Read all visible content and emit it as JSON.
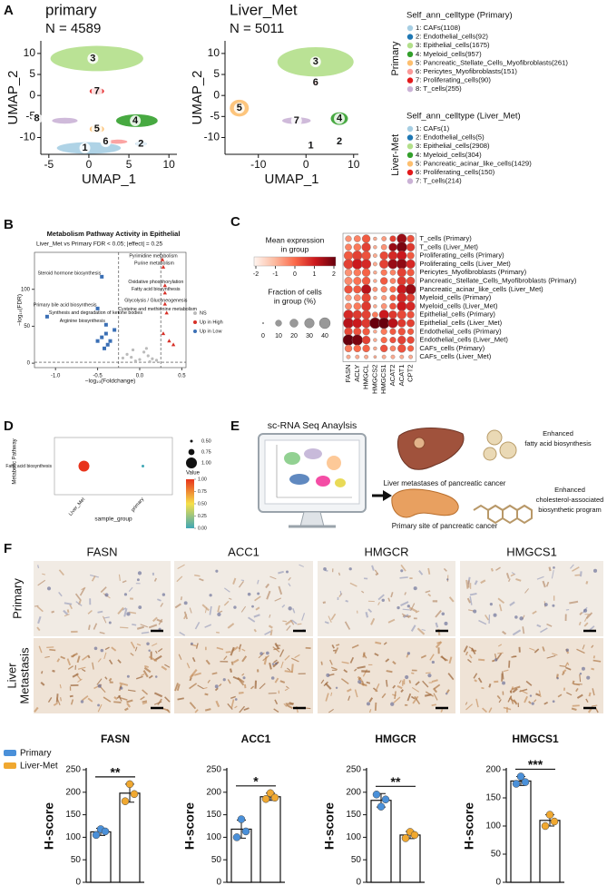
{
  "panel_labels": [
    "A",
    "B",
    "C",
    "D",
    "E",
    "F"
  ],
  "umap": [
    {
      "title": "primary",
      "n": "N = 4589",
      "xlabel": "UMAP_1",
      "ylabel": "UMAP_2",
      "xlim": [
        -6,
        11
      ],
      "ylim": [
        -14,
        13
      ],
      "xticks": [
        -5,
        0,
        5,
        10
      ],
      "yticks": [
        -10,
        -5,
        0,
        5,
        10
      ],
      "legend_title": "Self_ann_celltype (Primary)",
      "group": "Primary",
      "clusters": [
        {
          "id": "1",
          "name": "1: CAFs(1108)",
          "color": "#a6cee3"
        },
        {
          "id": "2",
          "name": "2: Endothelial_cells(92)",
          "color": "#1f78b4"
        },
        {
          "id": "3",
          "name": "3: Epithelial_cells(1675)",
          "color": "#b2df8a"
        },
        {
          "id": "4",
          "name": "4: Myeloid_cells(957)",
          "color": "#33a02c"
        },
        {
          "id": "5",
          "name": "5: Pancreatic_Stellate_Cells_Myofibroblasts(261)",
          "color": "#fdbf6f"
        },
        {
          "id": "6",
          "name": "6: Pericytes_Myofibroblasts(151)",
          "color": "#fb9a99"
        },
        {
          "id": "7",
          "name": "7: Proliferating_cells(90)",
          "color": "#e31a1c"
        },
        {
          "id": "8",
          "name": "8: T_cells(255)",
          "color": "#cab2d6"
        }
      ]
    },
    {
      "title": "Liver_Met",
      "n": "N = 5011",
      "xlabel": "UMAP_1",
      "ylabel": "UMAP_2",
      "xlim": [
        -17,
        11
      ],
      "ylim": [
        -14,
        13
      ],
      "xticks": [
        -10,
        0,
        10
      ],
      "yticks": [
        -10,
        -5,
        0,
        5,
        10
      ],
      "legend_title": "Self_ann_celltype (Liver_Met)",
      "group": "Liver-Met",
      "clusters": [
        {
          "id": "1",
          "name": "1: CAFs(1)",
          "color": "#a6cee3"
        },
        {
          "id": "2",
          "name": "2: Endothelial_cells(5)",
          "color": "#1f78b4"
        },
        {
          "id": "3",
          "name": "3: Epithelial_cells(2908)",
          "color": "#b2df8a"
        },
        {
          "id": "4",
          "name": "4: Myeloid_cells(304)",
          "color": "#33a02c"
        },
        {
          "id": "5",
          "name": "5: Pancreatic_acinar_like_cells(1429)",
          "color": "#fdbf6f"
        },
        {
          "id": "6",
          "name": "6: Proliferating_cells(150)",
          "color": "#e31a1c"
        },
        {
          "id": "7",
          "name": "7: T_cells(214)",
          "color": "#cab2d6"
        }
      ]
    }
  ],
  "volcano": {
    "title": "Metabolism Pathway Activity in Epithelial",
    "subtitle": "Liver_Met vs Primary FDR < 0.05; |effect| = 0.25",
    "xlabel": "−log₁₀(Foldchange)",
    "ylabel": "−log₁₀(FDR)",
    "xlim": [
      -1.25,
      0.55
    ],
    "ylim": [
      -6,
      150
    ],
    "xticks": [
      {
        "value": -1,
        "label": "-1.0"
      },
      {
        "value": -0.5,
        "label": "-0.5"
      },
      {
        "value": 0,
        "label": "0.0"
      },
      {
        "value": 0.5,
        "label": "0.5"
      }
    ],
    "yticks": [
      0,
      50,
      100
    ],
    "vlines": [
      -0.25,
      0.25
    ],
    "hline": 1.3,
    "groups": [
      {
        "name": "NS",
        "color": "#bbbbbb"
      },
      {
        "name": "Up in High",
        "color": "#d73027"
      },
      {
        "name": "Up in Low",
        "color": "#3a6fb5"
      }
    ],
    "points": [
      {
        "x": 0.27,
        "y": 140,
        "group": "Up in High",
        "label": "Pyrimidine metabolism"
      },
      {
        "x": -0.45,
        "y": 117,
        "group": "Up in Low",
        "label": "Steroid hormone biosynthesis"
      },
      {
        "x": 0.28,
        "y": 130,
        "group": "Up in High",
        "label": "Purine metabolism"
      },
      {
        "x": 0.3,
        "y": 105,
        "group": "Up in High",
        "label": "Oxidative phosphorylation"
      },
      {
        "x": 0.3,
        "y": 95,
        "group": "Up in High",
        "label": "Fatty acid biosynthesis"
      },
      {
        "x": -0.5,
        "y": 74,
        "group": "Up in Low",
        "label": "Primary bile acid biosynthesis"
      },
      {
        "x": 0.3,
        "y": 80,
        "group": "Up in High",
        "label": "Glycolysis / Gluconeogenesis"
      },
      {
        "x": -1.1,
        "y": 63,
        "group": "Up in Low",
        "label": "Synthesis and degradation of ketone bodies"
      },
      {
        "x": 0.32,
        "y": 68,
        "group": "Up in High",
        "label": "Cysteine and methionine metabolism"
      },
      {
        "x": -0.4,
        "y": 52,
        "group": "Up in Low",
        "label": "Arginine biosynthesis"
      },
      {
        "x": -0.4,
        "y": 40,
        "group": "Up in Low"
      },
      {
        "x": -0.45,
        "y": 35,
        "group": "Up in Low"
      },
      {
        "x": -0.35,
        "y": 30,
        "group": "Up in Low"
      },
      {
        "x": -0.38,
        "y": 25,
        "group": "Up in Low"
      },
      {
        "x": -0.3,
        "y": 45,
        "group": "Up in Low"
      },
      {
        "x": -0.42,
        "y": 20,
        "group": "Up in Low"
      },
      {
        "x": -0.5,
        "y": 30,
        "group": "Up in Low"
      },
      {
        "x": 0.35,
        "y": 30,
        "group": "Up in High"
      },
      {
        "x": 0.4,
        "y": 25,
        "group": "Up in High"
      },
      {
        "x": 0.28,
        "y": 40,
        "group": "Up in High"
      },
      {
        "x": 0,
        "y": 5,
        "group": "NS"
      },
      {
        "x": -0.1,
        "y": 8,
        "group": "NS"
      },
      {
        "x": 0.1,
        "y": 10,
        "group": "NS"
      },
      {
        "x": 0.05,
        "y": 15,
        "group": "NS"
      },
      {
        "x": -0.05,
        "y": 3,
        "group": "NS"
      },
      {
        "x": 0.15,
        "y": 6,
        "group": "NS"
      },
      {
        "x": -0.15,
        "y": 12,
        "group": "NS"
      },
      {
        "x": 0.2,
        "y": 4,
        "group": "NS"
      },
      {
        "x": -0.2,
        "y": 7,
        "group": "NS"
      },
      {
        "x": 0.08,
        "y": 20,
        "group": "NS"
      },
      {
        "x": -0.08,
        "y": 18,
        "group": "NS"
      },
      {
        "x": 0.12,
        "y": 2,
        "group": "NS"
      }
    ]
  },
  "dotplot": {
    "genes": [
      "FASN",
      "ACLY",
      "HMGCL",
      "HMGCS2",
      "HMGCS1",
      "ACAT2",
      "ACAT1",
      "CPT2"
    ],
    "groups": [
      "T_cells (Primary)",
      "T_cells (Liver_Met)",
      "Proliferating_cells (Primary)",
      "Proliferating_cells (Liver_Met)",
      "Pericytes_Myofibroblasts (Primary)",
      "Pancreatic_Stellate_Cells_Myofibroblasts (Primary)",
      "Pancreatic_acinar_like_cells (Liver_Met)",
      "Myeloid_cells (Primary)",
      "Myeloid_cells (Liver_Met)",
      "Epithelial_cells (Primary)",
      "Epithelial_cells (Liver_Met)",
      "Endothelial_cells (Primary)",
      "Endothelial_cells (Liver_Met)",
      "CAFs_cells (Primary)",
      "CAFs_cells (Liver_Met)"
    ],
    "mean": [
      [
        -0.5,
        -0.3,
        0.2,
        -0.8,
        -0.6,
        0.5,
        1.5,
        0.3
      ],
      [
        -0.3,
        -0.2,
        0.5,
        -0.8,
        -0.5,
        1.5,
        1.8,
        0.6
      ],
      [
        0.2,
        0.5,
        0.3,
        -0.8,
        0.4,
        0.8,
        1,
        0.2
      ],
      [
        0.5,
        1,
        0.8,
        -0.8,
        0.5,
        1.5,
        1.6,
        0.8
      ],
      [
        -0.5,
        -0.2,
        0.1,
        -0.8,
        -0.2,
        -0.3,
        0.5,
        0.2
      ],
      [
        -0.4,
        -0.1,
        0.2,
        -0.8,
        0.2,
        -0.3,
        0.6,
        0.4
      ],
      [
        0.3,
        0.2,
        1.2,
        -0.5,
        -0.3,
        0,
        1,
        1.5
      ],
      [
        -0.6,
        -0.4,
        0.4,
        -0.8,
        -0.6,
        0.2,
        0.8,
        0.5
      ],
      [
        -0.4,
        -0.2,
        0.6,
        -0.8,
        -0.5,
        0.3,
        1,
        0.8
      ],
      [
        0.8,
        0.6,
        0.5,
        -0.2,
        1,
        0.6,
        0.4,
        0.3
      ],
      [
        1.2,
        1,
        0.6,
        2,
        2,
        1.2,
        0.6,
        0.5
      ],
      [
        0.4,
        0.3,
        0.2,
        -0.8,
        -0.2,
        0.2,
        0.3,
        0.2
      ],
      [
        2,
        1.8,
        0.5,
        -0.8,
        0,
        0.3,
        0.5,
        0.4
      ],
      [
        -0.2,
        0,
        0.1,
        -0.8,
        0.3,
        -0.3,
        0.3,
        0.1
      ],
      [
        -0.8,
        -0.8,
        -0.8,
        -0.8,
        -0.8,
        -0.8,
        -0.8,
        -0.8
      ]
    ],
    "fraction": [
      [
        10,
        12,
        20,
        2,
        5,
        10,
        30,
        15
      ],
      [
        12,
        15,
        25,
        2,
        8,
        20,
        35,
        20
      ],
      [
        25,
        30,
        25,
        3,
        20,
        25,
        30,
        15
      ],
      [
        30,
        35,
        30,
        3,
        25,
        30,
        35,
        25
      ],
      [
        15,
        15,
        20,
        2,
        10,
        8,
        25,
        15
      ],
      [
        18,
        18,
        20,
        2,
        15,
        8,
        25,
        20
      ],
      [
        20,
        18,
        30,
        5,
        10,
        10,
        30,
        35
      ],
      [
        10,
        12,
        25,
        2,
        6,
        10,
        30,
        20
      ],
      [
        12,
        15,
        28,
        2,
        8,
        12,
        30,
        25
      ],
      [
        30,
        25,
        25,
        8,
        30,
        20,
        25,
        15
      ],
      [
        35,
        30,
        28,
        40,
        40,
        30,
        20,
        18
      ],
      [
        20,
        18,
        15,
        2,
        10,
        10,
        15,
        10
      ],
      [
        40,
        38,
        20,
        2,
        10,
        10,
        20,
        15
      ],
      [
        15,
        15,
        15,
        2,
        15,
        8,
        20,
        10
      ],
      [
        3,
        3,
        3,
        1,
        3,
        3,
        3,
        3
      ]
    ],
    "color_title": [
      "Mean expression",
      "in group"
    ],
    "clim": [
      -2,
      2
    ],
    "cticks": [
      -2,
      -1,
      0,
      1,
      2
    ],
    "colormap": [
      "#fff5f0",
      "#fcbba1",
      "#fb6a4a",
      "#cb181d",
      "#67000d"
    ],
    "size_title": [
      "Fraction of cells",
      "in group (%)"
    ],
    "sticks": [
      0,
      10,
      20,
      30,
      40
    ]
  },
  "bubble": {
    "ylabel": "Metabolic Pathway",
    "xlabel": "sample_group",
    "categories": [
      "Liver_Met",
      "primary"
    ],
    "pathways": [
      "Fatty acid biosynthesis"
    ],
    "values": [
      1,
      0
    ],
    "sizes": [
      1,
      0.5
    ],
    "color_title": "Value",
    "clim": [
      0,
      1
    ],
    "cticks": [
      {
        "value": 0,
        "label": "0.00"
      },
      {
        "value": 0.25,
        "label": "0.25"
      },
      {
        "value": 0.5,
        "label": "0.50"
      },
      {
        "value": 0.75,
        "label": "0.75"
      },
      {
        "value": 1,
        "label": "1.00"
      }
    ],
    "sticks": [
      {
        "value": 0.5,
        "label": "0.50"
      },
      {
        "value": 0.75,
        "label": "0.75"
      },
      {
        "value": 1,
        "label": "1.00"
      }
    ],
    "colormap": [
      "#3fa7b5",
      "#f5e04a",
      "#e8341c"
    ]
  },
  "schematic": {
    "title": "sc-RNA Seq Anaylsis",
    "liver_caption": "Liver metastases of pancreatic cancer",
    "pancreas_caption": "Primary site of pancreatic cancer",
    "liver_effect": [
      "Enhanced",
      "fatty acid biosynthesis"
    ],
    "pancreas_effect": [
      "Enhanced",
      "cholesterol-associated",
      "biosynthetic program"
    ]
  },
  "ihc": {
    "columns": [
      "FASN",
      "ACC1",
      "HMGCR",
      "HMGCS1"
    ],
    "rows": [
      [
        "Primary"
      ],
      [
        "Liver",
        "Metastasis"
      ]
    ]
  },
  "bar_legend": [
    {
      "name": "Primary",
      "color": "#4a90d9"
    },
    {
      "name": "Liver-Met",
      "color": "#f0a830"
    }
  ],
  "chart_data": [
    {
      "type": "bar",
      "title": "FASN",
      "ylabel": "H-score",
      "values": [
        112,
        198
      ],
      "errors": [
        8,
        20
      ],
      "points": [
        [
          105,
          118,
          113
        ],
        [
          180,
          218,
          196
        ]
      ],
      "significance": "**",
      "ylim": [
        0,
        250
      ],
      "yticks": [
        0,
        50,
        100,
        150,
        200,
        250
      ]
    },
    {
      "type": "bar",
      "title": "ACC1",
      "ylabel": "H-score",
      "values": [
        118,
        190
      ],
      "errors": [
        20,
        8
      ],
      "points": [
        [
          100,
          140,
          113
        ],
        [
          185,
          198,
          188
        ]
      ],
      "significance": "*",
      "ylim": [
        0,
        250
      ],
      "yticks": [
        0,
        50,
        100,
        150,
        200,
        250
      ]
    },
    {
      "type": "bar",
      "title": "HMGCR",
      "ylabel": "H-score",
      "values": [
        182,
        105
      ],
      "errors": [
        15,
        8
      ],
      "points": [
        [
          195,
          168,
          184
        ],
        [
          98,
          112,
          105
        ]
      ],
      "significance": "**",
      "ylim": [
        0,
        250
      ],
      "yticks": [
        0,
        50,
        100,
        150,
        200,
        250
      ]
    },
    {
      "type": "bar",
      "title": "HMGCS1",
      "ylabel": "H-score",
      "values": [
        180,
        110
      ],
      "errors": [
        8,
        10
      ],
      "points": [
        [
          175,
          188,
          178
        ],
        [
          100,
          120,
          108
        ]
      ],
      "significance": "***",
      "ylim": [
        0,
        200
      ],
      "yticks": [
        0,
        50,
        100,
        150,
        200
      ]
    }
  ]
}
